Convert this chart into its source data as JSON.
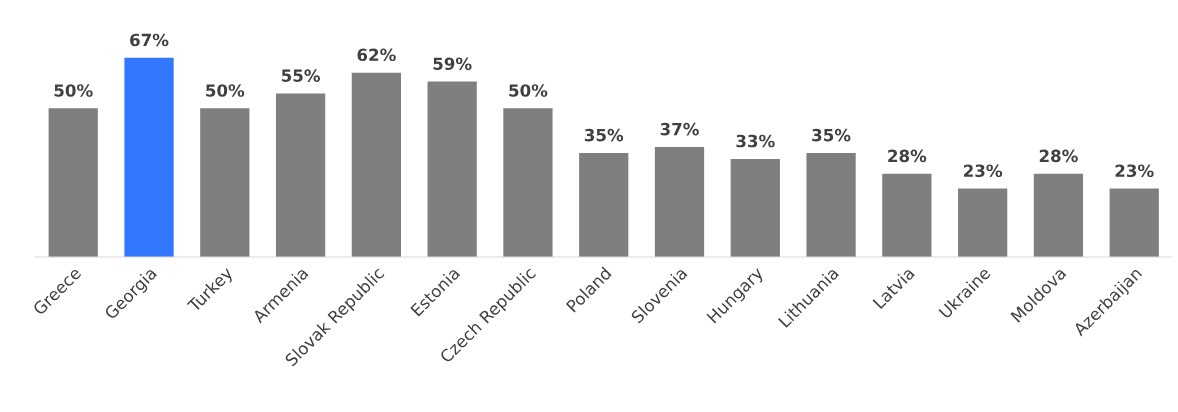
{
  "chart_data": {
    "type": "bar",
    "categories": [
      "Greece",
      "Georgia",
      "Turkey",
      "Armenia",
      "Slovak Republic",
      "Estonia",
      "Czech Republic",
      "Poland",
      "Slovenia",
      "Hungary",
      "Lithuania",
      "Latvia",
      "Ukraine",
      "Moldova",
      "Azerbaijan"
    ],
    "values": [
      50,
      67,
      50,
      55,
      62,
      59,
      50,
      35,
      37,
      33,
      35,
      28,
      23,
      28,
      23
    ],
    "value_labels": [
      "50%",
      "67%",
      "50%",
      "55%",
      "62%",
      "59%",
      "50%",
      "35%",
      "37%",
      "33%",
      "35%",
      "28%",
      "23%",
      "28%",
      "23%"
    ],
    "colors": [
      "#7f7f7f",
      "#3377ff",
      "#7f7f7f",
      "#7f7f7f",
      "#7f7f7f",
      "#7f7f7f",
      "#7f7f7f",
      "#7f7f7f",
      "#7f7f7f",
      "#7f7f7f",
      "#7f7f7f",
      "#7f7f7f",
      "#7f7f7f",
      "#7f7f7f",
      "#7f7f7f"
    ],
    "grid": false,
    "legend": false
  }
}
